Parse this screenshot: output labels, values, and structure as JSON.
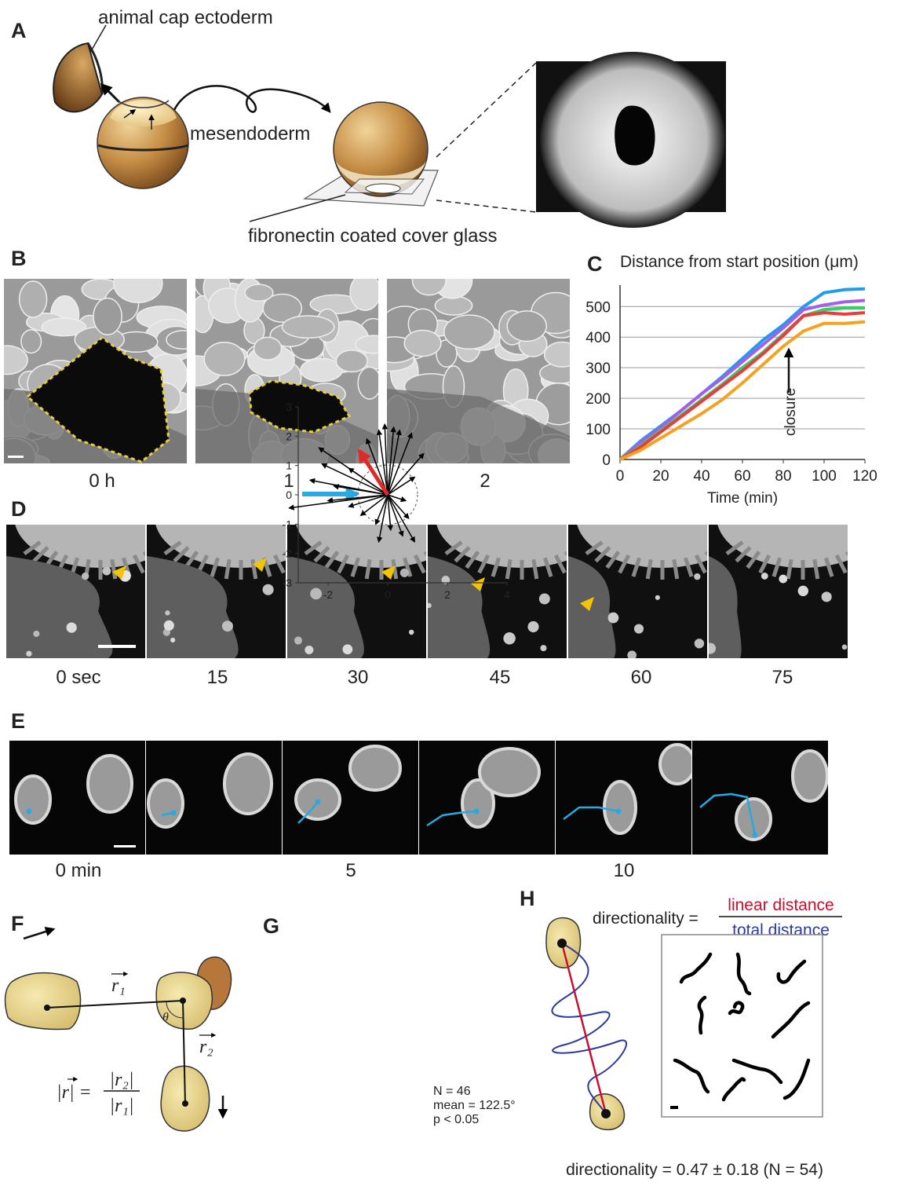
{
  "panel_labels": [
    "A",
    "B",
    "C",
    "D",
    "E",
    "F",
    "G",
    "H"
  ],
  "panel_a": {
    "cap_label": "animal cap ectoderm",
    "mesendoderm_label": "mesendoderm",
    "glass_label": "fibronectin coated cover glass"
  },
  "panel_b": {
    "time_labels": [
      "0 h",
      "1",
      "2"
    ]
  },
  "panel_d": {
    "time_labels": [
      "0 sec",
      "15",
      "30",
      "45",
      "60",
      "75"
    ]
  },
  "panel_e": {
    "time_labels": [
      "0 min",
      "5",
      "10"
    ]
  },
  "panel_f": {
    "r1": "r₁",
    "r2": "r₂",
    "theta": "θ",
    "ratio_lhs": "|r| =",
    "numerator": "|r₂|",
    "denominator": "|r₁|"
  },
  "panel_h": {
    "lhs": "directionality =",
    "numerator": "linear distance",
    "denominator": "total distance",
    "result": "directionality = 0.47 ± 0.18  (N = 54)"
  },
  "chart_data": [
    {
      "type": "line",
      "title": "Distance from start position (μm)",
      "x_label": "Time (min)",
      "annotation": "closure",
      "x": [
        0,
        10,
        20,
        30,
        40,
        50,
        60,
        70,
        80,
        90,
        100,
        110,
        120
      ],
      "series": [
        {
          "color": "#1f9bef",
          "values": [
            0,
            60,
            110,
            160,
            215,
            270,
            330,
            390,
            440,
            500,
            545,
            555,
            558
          ]
        },
        {
          "color": "#a45ee8",
          "values": [
            0,
            55,
            105,
            160,
            215,
            265,
            320,
            375,
            430,
            490,
            505,
            515,
            520
          ]
        },
        {
          "color": "#2fd16a",
          "values": [
            0,
            45,
            95,
            145,
            195,
            245,
            300,
            350,
            410,
            470,
            490,
            495,
            495
          ]
        },
        {
          "color": "#ee3a3a",
          "values": [
            0,
            40,
            90,
            140,
            190,
            240,
            290,
            345,
            405,
            470,
            480,
            475,
            480
          ]
        },
        {
          "color": "#f5a21f",
          "values": [
            0,
            30,
            70,
            110,
            150,
            195,
            250,
            310,
            370,
            420,
            445,
            445,
            450
          ]
        }
      ],
      "xlim": [
        0,
        120
      ],
      "ylim": [
        0,
        570
      ],
      "xticks": [
        0,
        20,
        40,
        60,
        80,
        100,
        120
      ],
      "yticks": [
        0,
        100,
        200,
        300,
        400,
        500
      ],
      "grid": true
    },
    {
      "type": "vector",
      "xlim": [
        -3,
        4
      ],
      "ylim": [
        -3,
        3
      ],
      "xticks": [
        -2,
        0,
        2,
        4
      ],
      "yticks": [
        -3,
        -2,
        -1,
        0,
        1,
        2,
        3
      ],
      "x": [
        -3.3,
        -2.3,
        -2.2,
        -2.6,
        -1.8,
        -2.0,
        -1.3,
        -0.7,
        -0.3,
        -0.1,
        0.2,
        0.4,
        0.8,
        1.2,
        0.9,
        0.6,
        0.7,
        0.5,
        0.9,
        0.1,
        -0.4,
        -0.9,
        -1.3,
        -0.3
      ],
      "values": [
        -0.45,
        1.6,
        1.05,
        0.5,
        0.3,
        -0.2,
        0.9,
        1.9,
        2.2,
        2.4,
        2.3,
        2.2,
        2.1,
        1.4,
        0.6,
        -0.2,
        -0.8,
        -1.4,
        -1.6,
        -1.2,
        -1.0,
        -0.7,
        -0.4,
        -1.6
      ],
      "color": "#000000",
      "mean_x": -0.95,
      "mean_y": 1.5,
      "mean_color": "#e02a2a",
      "annotations": [
        "N = 46",
        "mean = 122.5°",
        "p < 0.05"
      ]
    }
  ]
}
